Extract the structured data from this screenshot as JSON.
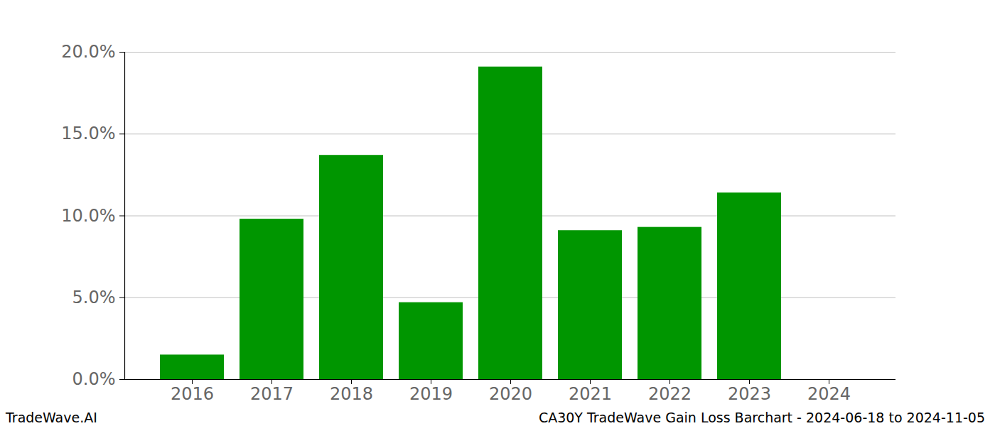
{
  "chart_data": {
    "type": "bar",
    "title": "CA30Y TradeWave Gain Loss Barchart - 2024-06-18 to 2024-11-05",
    "annotations": [
      "TradeWave.AI"
    ],
    "categories": [
      "2016",
      "2017",
      "2018",
      "2019",
      "2020",
      "2021",
      "2022",
      "2023",
      "2024"
    ],
    "values": [
      1.5,
      9.8,
      13.7,
      4.7,
      19.1,
      9.1,
      9.3,
      11.4,
      null
    ],
    "color": "#009600",
    "ylim": [
      0,
      20
    ],
    "yticks": [
      {
        "value": 0,
        "label": "0.0%"
      },
      {
        "value": 5,
        "label": "5.0%"
      },
      {
        "value": 10,
        "label": "10.0%"
      },
      {
        "value": 15,
        "label": "15.0%"
      },
      {
        "value": 20,
        "label": "20.0%"
      }
    ],
    "grid": true
  }
}
